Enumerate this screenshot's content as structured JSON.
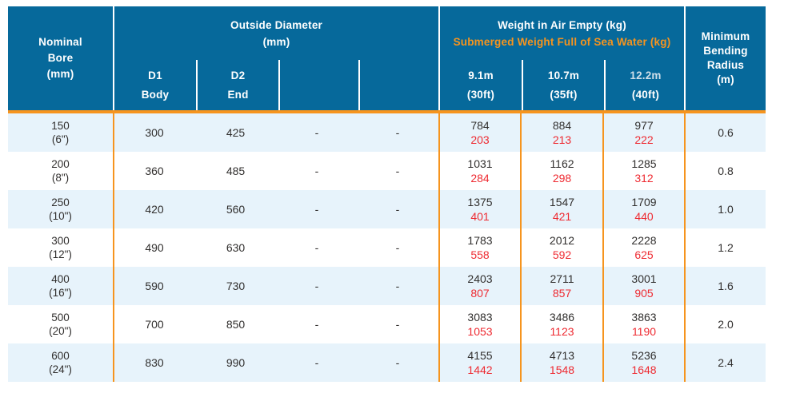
{
  "colors": {
    "header_bg": "#06699b",
    "accent_orange": "#f6941e",
    "row_alt_bg": "#e7f3fb",
    "submerged_red": "#ee2a31",
    "text_dark": "#312f2e"
  },
  "header": {
    "nominal_bore": [
      "Nominal",
      "Bore",
      "(mm)"
    ],
    "outside_diameter": {
      "title": "Outside Diameter",
      "unit": "(mm)",
      "subcols": [
        [
          "D1",
          "Body"
        ],
        [
          "D2",
          "End"
        ],
        [
          "",
          ""
        ],
        [
          "",
          ""
        ]
      ]
    },
    "weight": {
      "air_label": "Weight in Air Empty (kg)",
      "submerged_label": "Submerged Weight Full of Sea Water (kg)",
      "subcols": [
        [
          "9.1m",
          "(30ft)"
        ],
        [
          "10.7m",
          "(35ft)"
        ],
        [
          "12.2m",
          "(40ft)"
        ]
      ]
    },
    "min_bending": [
      "Minimum",
      "Bending",
      "Radius",
      "(m)"
    ]
  },
  "rows": [
    {
      "bore": [
        "150",
        "(6\")"
      ],
      "d1": "300",
      "d2": "425",
      "e1": "-",
      "e2": "-",
      "weights": [
        {
          "air": "784",
          "submerged": "203"
        },
        {
          "air": "884",
          "submerged": "213"
        },
        {
          "air": "977",
          "submerged": "222"
        }
      ],
      "bend": "0.6"
    },
    {
      "bore": [
        "200",
        "(8\")"
      ],
      "d1": "360",
      "d2": "485",
      "e1": "-",
      "e2": "-",
      "weights": [
        {
          "air": "1031",
          "submerged": "284"
        },
        {
          "air": "1162",
          "submerged": "298"
        },
        {
          "air": "1285",
          "submerged": "312"
        }
      ],
      "bend": "0.8"
    },
    {
      "bore": [
        "250",
        "(10\")"
      ],
      "d1": "420",
      "d2": "560",
      "e1": "-",
      "e2": "-",
      "weights": [
        {
          "air": "1375",
          "submerged": "401"
        },
        {
          "air": "1547",
          "submerged": "421"
        },
        {
          "air": "1709",
          "submerged": "440"
        }
      ],
      "bend": "1.0"
    },
    {
      "bore": [
        "300",
        "(12\")"
      ],
      "d1": "490",
      "d2": "630",
      "e1": "-",
      "e2": "-",
      "weights": [
        {
          "air": "1783",
          "submerged": "558"
        },
        {
          "air": "2012",
          "submerged": "592"
        },
        {
          "air": "2228",
          "submerged": "625"
        }
      ],
      "bend": "1.2"
    },
    {
      "bore": [
        "400",
        "(16\")"
      ],
      "d1": "590",
      "d2": "730",
      "e1": "-",
      "e2": "-",
      "weights": [
        {
          "air": "2403",
          "submerged": "807"
        },
        {
          "air": "2711",
          "submerged": "857"
        },
        {
          "air": "3001",
          "submerged": "905"
        }
      ],
      "bend": "1.6"
    },
    {
      "bore": [
        "500",
        "(20\")"
      ],
      "d1": "700",
      "d2": "850",
      "e1": "-",
      "e2": "-",
      "weights": [
        {
          "air": "3083",
          "submerged": "1053"
        },
        {
          "air": "3486",
          "submerged": "1123"
        },
        {
          "air": "3863",
          "submerged": "1190"
        }
      ],
      "bend": "2.0"
    },
    {
      "bore": [
        "600",
        "(24\")"
      ],
      "d1": "830",
      "d2": "990",
      "e1": "-",
      "e2": "-",
      "weights": [
        {
          "air": "4155",
          "submerged": "1442"
        },
        {
          "air": "4713",
          "submerged": "1548"
        },
        {
          "air": "5236",
          "submerged": "1648"
        }
      ],
      "bend": "2.4"
    }
  ]
}
